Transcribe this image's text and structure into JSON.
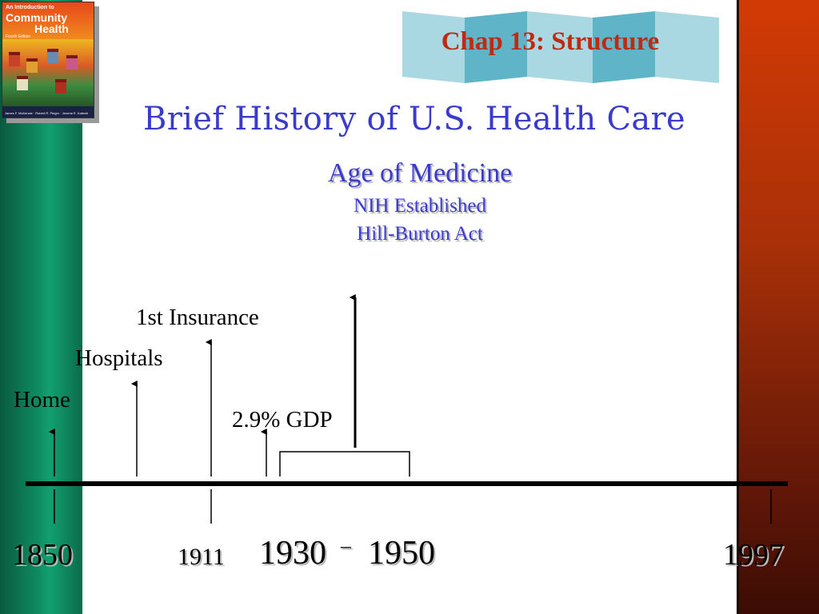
{
  "header": {
    "book_cover": {
      "line1": "An Introduction to",
      "line2": "Community",
      "line3": "Health",
      "edition": "Fourth Edition",
      "authors": "James F. McKenzie · Robert R. Pinger · Jerome E. Kotecki"
    },
    "chapter_title": "Chap 13: Structure"
  },
  "slide": {
    "title": "Brief History of U.S. Health Care",
    "era": {
      "title": "Age of Medicine",
      "line1": "NIH Established",
      "line2": "Hill-Burton Act"
    }
  },
  "timeline": {
    "labels": {
      "home": "Home",
      "hospitals": "Hospitals",
      "insurance": "1st Insurance",
      "gdp": "2.9% GDP"
    },
    "years": {
      "y1850": "1850",
      "y1911": "1911",
      "y1930": "1930",
      "dash": "–",
      "y1950": "1950",
      "y1997": "1997"
    }
  },
  "colors": {
    "title_blue": "#3a3acc",
    "chapter_red": "#c02a10",
    "left_bar": "#0e8a60",
    "right_bar": "#a83008",
    "banner_teal": "#7fc4d2"
  }
}
